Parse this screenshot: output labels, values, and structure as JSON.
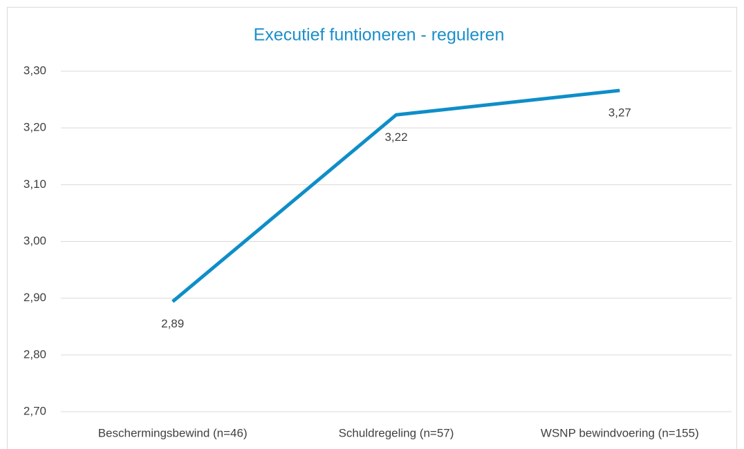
{
  "chart_data": {
    "type": "line",
    "title": "Executief funtioneren - reguleren",
    "categories": [
      "Beschermingsbewind (n=46)",
      "Schuldregeling (n=57)",
      "WSNP bewindvoering (n=155)"
    ],
    "series": [
      {
        "name": "Executief funtioneren - reguleren",
        "color": "#0e8ec8",
        "values": [
          2.894,
          3.223,
          3.266
        ],
        "value_labels": [
          "2,89",
          "3,22",
          "3,27"
        ]
      }
    ],
    "ylim": [
      2.7,
      3.3
    ],
    "yticks": [
      {
        "value": 2.7,
        "label": "2,70"
      },
      {
        "value": 2.8,
        "label": "2,80"
      },
      {
        "value": 2.9,
        "label": "2,90"
      },
      {
        "value": 3.0,
        "label": "3,00"
      },
      {
        "value": 3.1,
        "label": "3,10"
      },
      {
        "value": 3.2,
        "label": "3,20"
      },
      {
        "value": 3.3,
        "label": "3,30"
      }
    ],
    "grid": true
  }
}
